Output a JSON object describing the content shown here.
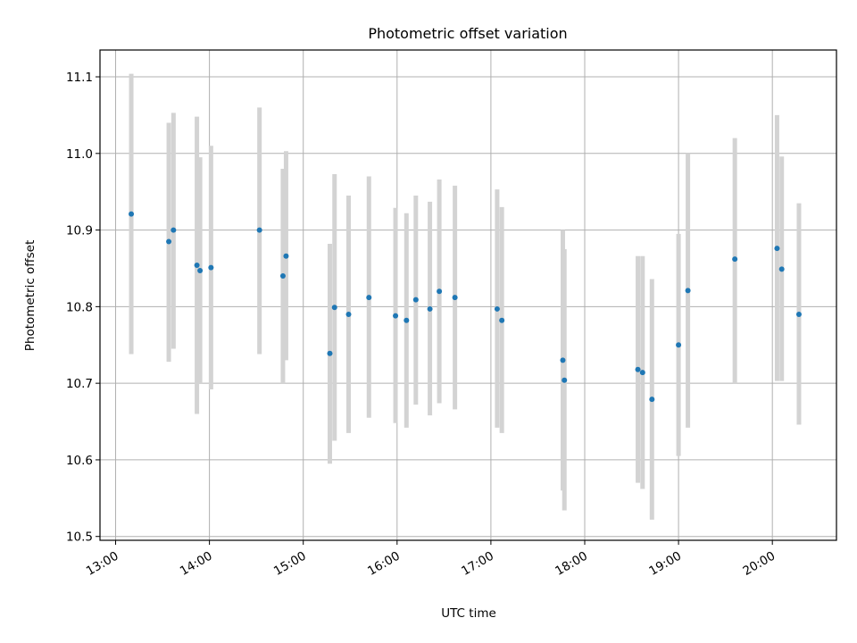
{
  "chart_data": {
    "type": "scatter",
    "title": "Photometric offset variation",
    "xlabel": "UTC time",
    "ylabel": "Photometric offset",
    "x_ticks": [
      "13:00",
      "14:00",
      "15:00",
      "16:00",
      "17:00",
      "18:00",
      "19:00",
      "20:00"
    ],
    "y_ticks": [
      "10.5",
      "10.6",
      "10.7",
      "10.8",
      "10.9",
      "11.0",
      "11.1"
    ],
    "xlim": [
      "12:50",
      "20:41"
    ],
    "ylim": [
      10.495,
      11.135
    ],
    "grid": true,
    "colors": {
      "point": "#1f77b4",
      "errorbar": "#d3d3d3",
      "grid": "#b0b0b0"
    },
    "series": [
      {
        "points": [
          {
            "x": "13:10",
            "y": 10.921,
            "ylo": 10.738,
            "yhi": 11.104
          },
          {
            "x": "13:34",
            "y": 10.885,
            "ylo": 10.728,
            "yhi": 11.04
          },
          {
            "x": "13:37",
            "y": 10.9,
            "ylo": 10.745,
            "yhi": 11.053
          },
          {
            "x": "13:52",
            "y": 10.854,
            "ylo": 10.66,
            "yhi": 11.048
          },
          {
            "x": "13:54",
            "y": 10.847,
            "ylo": 10.7,
            "yhi": 10.995
          },
          {
            "x": "14:01",
            "y": 10.851,
            "ylo": 10.692,
            "yhi": 11.01
          },
          {
            "x": "14:32",
            "y": 10.9,
            "ylo": 10.738,
            "yhi": 11.06
          },
          {
            "x": "14:47",
            "y": 10.84,
            "ylo": 10.7,
            "yhi": 10.98
          },
          {
            "x": "14:49",
            "y": 10.866,
            "ylo": 10.73,
            "yhi": 11.003
          },
          {
            "x": "15:17",
            "y": 10.739,
            "ylo": 10.595,
            "yhi": 10.882
          },
          {
            "x": "15:20",
            "y": 10.799,
            "ylo": 10.625,
            "yhi": 10.973
          },
          {
            "x": "15:29",
            "y": 10.79,
            "ylo": 10.635,
            "yhi": 10.945
          },
          {
            "x": "15:42",
            "y": 10.812,
            "ylo": 10.655,
            "yhi": 10.97
          },
          {
            "x": "15:59",
            "y": 10.788,
            "ylo": 10.648,
            "yhi": 10.929
          },
          {
            "x": "16:06",
            "y": 10.782,
            "ylo": 10.642,
            "yhi": 10.922
          },
          {
            "x": "16:12",
            "y": 10.809,
            "ylo": 10.672,
            "yhi": 10.945
          },
          {
            "x": "16:21",
            "y": 10.797,
            "ylo": 10.658,
            "yhi": 10.937
          },
          {
            "x": "16:27",
            "y": 10.82,
            "ylo": 10.674,
            "yhi": 10.966
          },
          {
            "x": "16:37",
            "y": 10.812,
            "ylo": 10.666,
            "yhi": 10.958
          },
          {
            "x": "17:04",
            "y": 10.797,
            "ylo": 10.642,
            "yhi": 10.953
          },
          {
            "x": "17:07",
            "y": 10.782,
            "ylo": 10.635,
            "yhi": 10.93
          },
          {
            "x": "17:46",
            "y": 10.73,
            "ylo": 10.56,
            "yhi": 10.9
          },
          {
            "x": "17:47",
            "y": 10.704,
            "ylo": 10.534,
            "yhi": 10.875
          },
          {
            "x": "18:34",
            "y": 10.718,
            "ylo": 10.57,
            "yhi": 10.866
          },
          {
            "x": "18:37",
            "y": 10.714,
            "ylo": 10.562,
            "yhi": 10.866
          },
          {
            "x": "18:43",
            "y": 10.679,
            "ylo": 10.522,
            "yhi": 10.836
          },
          {
            "x": "19:00",
            "y": 10.75,
            "ylo": 10.605,
            "yhi": 10.895
          },
          {
            "x": "19:06",
            "y": 10.821,
            "ylo": 10.642,
            "yhi": 11.0
          },
          {
            "x": "19:36",
            "y": 10.862,
            "ylo": 10.7,
            "yhi": 11.02
          },
          {
            "x": "20:03",
            "y": 10.876,
            "ylo": 10.703,
            "yhi": 11.05
          },
          {
            "x": "20:06",
            "y": 10.849,
            "ylo": 10.703,
            "yhi": 10.996
          },
          {
            "x": "20:17",
            "y": 10.79,
            "ylo": 10.646,
            "yhi": 10.935
          }
        ]
      }
    ]
  }
}
